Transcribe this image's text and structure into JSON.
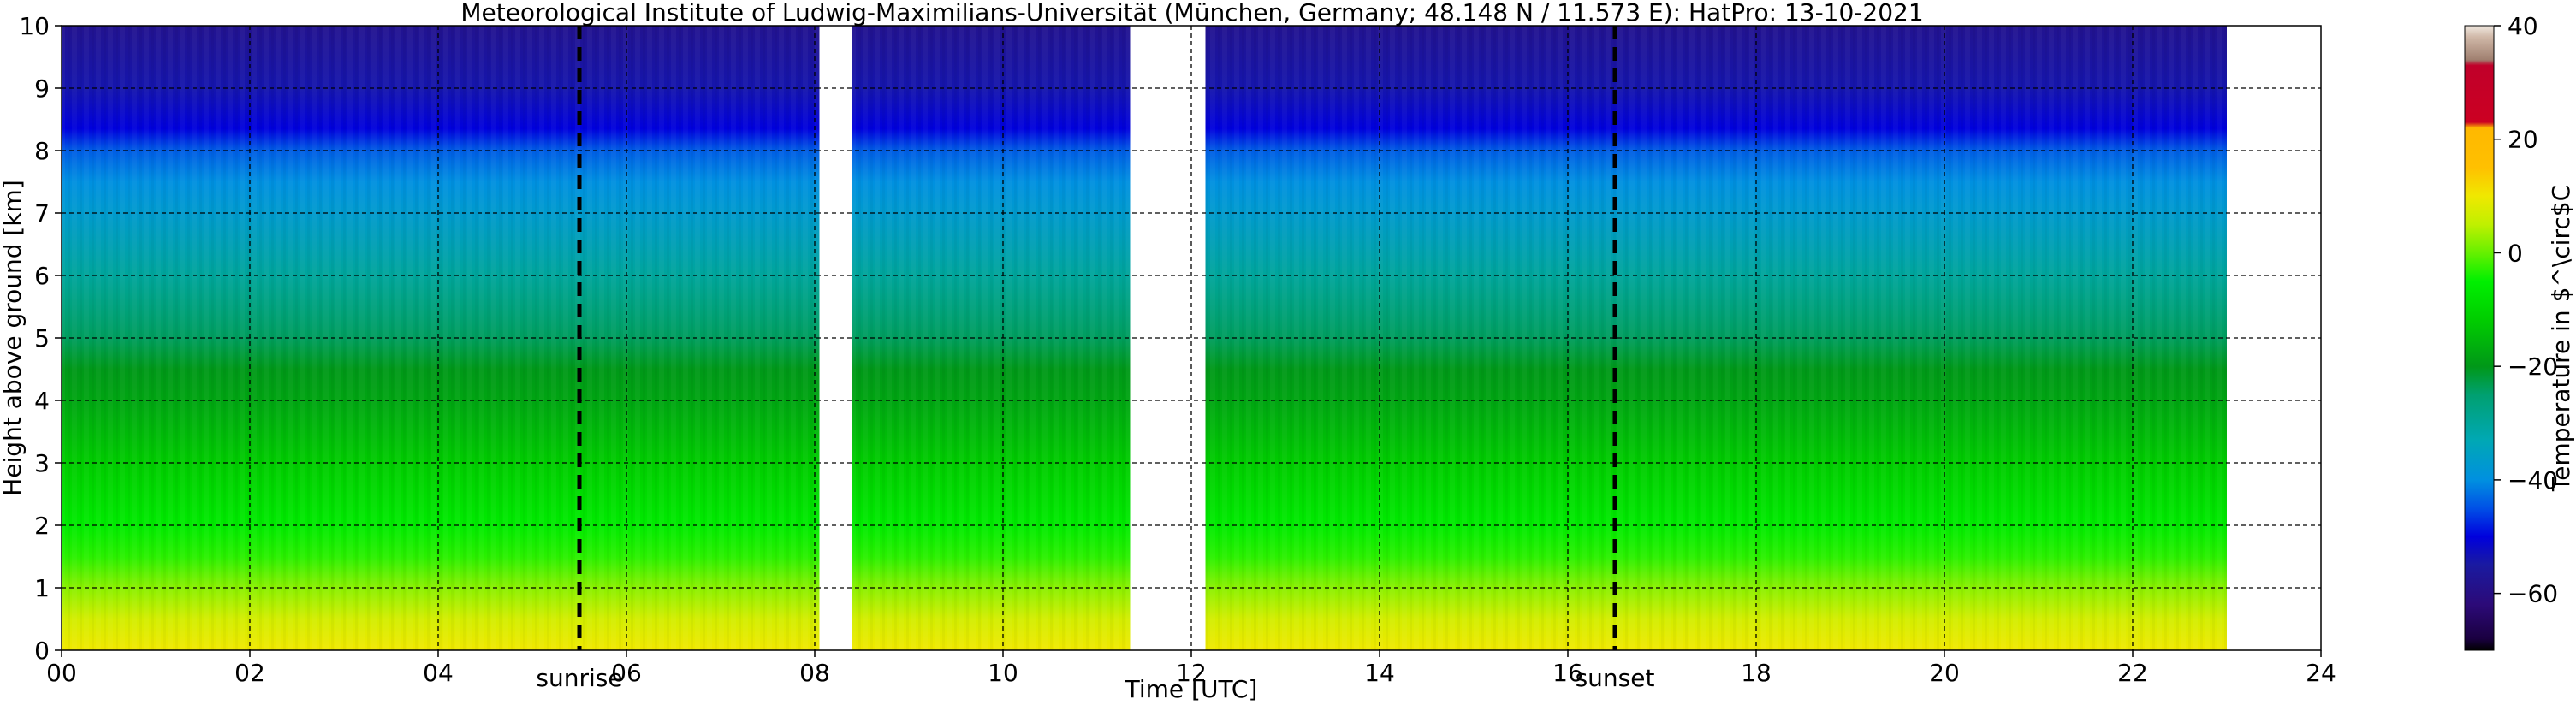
{
  "chart_data": {
    "type": "heatmap",
    "title": "Meteorological Institute of Ludwig-Maximilians-Universität (München, Germany; 48.148 N / 11.573 E):    HatPro: 13-10-2021",
    "xlabel": "Time [UTC]",
    "ylabel": "Height above ground [km]",
    "xlim": [
      0,
      24
    ],
    "ylim": [
      0,
      10
    ],
    "x_ticks": [
      0,
      2,
      4,
      6,
      8,
      10,
      12,
      14,
      16,
      18,
      20,
      22,
      24
    ],
    "x_tick_labels": [
      "00",
      "02",
      "04",
      "06",
      "08",
      "10",
      "12",
      "14",
      "16",
      "18",
      "20",
      "22",
      "24"
    ],
    "y_ticks": [
      0,
      1,
      2,
      3,
      4,
      5,
      6,
      7,
      8,
      9,
      10
    ],
    "y_tick_labels": [
      "0",
      "1",
      "2",
      "3",
      "4",
      "5",
      "6",
      "7",
      "8",
      "9",
      "10"
    ],
    "grid": true,
    "data_segments_utc": [
      [
        0.0,
        8.05
      ],
      [
        8.4,
        11.35
      ],
      [
        12.15,
        23.0
      ]
    ],
    "temperature_profile": {
      "height_km": [
        0.0,
        0.5,
        1.0,
        1.5,
        2.0,
        3.0,
        4.0,
        4.5,
        5.0,
        6.0,
        7.0,
        7.5,
        8.0,
        8.35,
        9.0,
        10.0
      ],
      "temperature_c": [
        10.0,
        7.0,
        2.0,
        -3.0,
        -6.0,
        -12.0,
        -18.0,
        -20.0,
        -24.0,
        -30.0,
        -37.0,
        -40.0,
        -44.0,
        -50.0,
        -54.0,
        -58.0
      ]
    },
    "annotations": [
      {
        "label": "sunrise",
        "time_utc": 5.5
      },
      {
        "label": "sunset",
        "time_utc": 16.5
      }
    ],
    "colorbar": {
      "label": "Temperature in $^\\circ$C",
      "range": [
        -70,
        40
      ],
      "ticks": [
        -60,
        -40,
        -20,
        0,
        20,
        40
      ],
      "tick_labels": [
        "−60",
        "−40",
        "−20",
        "0",
        "20",
        "40"
      ],
      "color_stops": [
        {
          "value": -70,
          "color": "#000000"
        },
        {
          "value": -68,
          "color": "#1a0040"
        },
        {
          "value": -62,
          "color": "#2c0a78"
        },
        {
          "value": -55,
          "color": "#1a1aa0"
        },
        {
          "value": -50,
          "color": "#0000dd"
        },
        {
          "value": -45,
          "color": "#0050e6"
        },
        {
          "value": -40,
          "color": "#0090e0"
        },
        {
          "value": -33,
          "color": "#00a8b4"
        },
        {
          "value": -25,
          "color": "#00a070"
        },
        {
          "value": -20,
          "color": "#009818"
        },
        {
          "value": -12,
          "color": "#00cc00"
        },
        {
          "value": -5,
          "color": "#00f000"
        },
        {
          "value": 0,
          "color": "#66f000"
        },
        {
          "value": 5,
          "color": "#c0f000"
        },
        {
          "value": 10,
          "color": "#f0e800"
        },
        {
          "value": 15,
          "color": "#ffc000"
        },
        {
          "value": 22,
          "color": "#ffb800"
        },
        {
          "value": 23,
          "color": "#cc0022"
        },
        {
          "value": 33,
          "color": "#c0002a"
        },
        {
          "value": 34,
          "color": "#a08070"
        },
        {
          "value": 38,
          "color": "#d0b8a8"
        },
        {
          "value": 40,
          "color": "#f0e8e0"
        }
      ]
    }
  }
}
